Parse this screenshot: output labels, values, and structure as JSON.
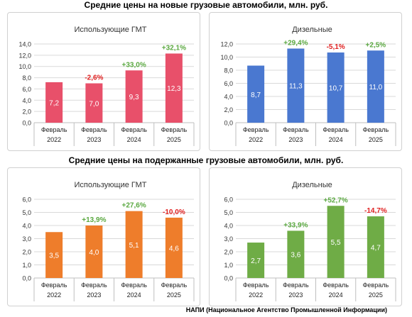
{
  "titles": {
    "new": "Средние цены на новые грузовые автомобили, млн. руб.",
    "used": "Средние цены на подержанные грузовые автомобили, млн. руб."
  },
  "footer": "НАПИ (Национальное Агентство Промышленной Информации)",
  "chart_data": [
    {
      "type": "bar",
      "title": "Использующие ГМТ",
      "categories": [
        "Февраль 2022",
        "Февраль 2023",
        "Февраль 2024",
        "Февраль 2025"
      ],
      "values": [
        7.2,
        7.0,
        9.3,
        12.3
      ],
      "value_labels": [
        "7,2",
        "7,0",
        "9,3",
        "12,3"
      ],
      "changes": [
        "",
        "-2,6%",
        "+33,0%",
        "+32,1%"
      ],
      "ylim": [
        0,
        14
      ],
      "yticks": [
        "0,0",
        "2,0",
        "4,0",
        "6,0",
        "8,0",
        "10,0",
        "12,0",
        "14,0"
      ],
      "color": "#e8506a",
      "grid": true
    },
    {
      "type": "bar",
      "title": "Дизельные",
      "categories": [
        "Февраль 2022",
        "Февраль 2023",
        "Февраль 2024",
        "Февраль 2025"
      ],
      "values": [
        8.7,
        11.3,
        10.7,
        11.0
      ],
      "value_labels": [
        "8,7",
        "11,3",
        "10,7",
        "11,0"
      ],
      "changes": [
        "",
        "+29,4%",
        "-5,1%",
        "+2,5%"
      ],
      "ylim": [
        0,
        12
      ],
      "yticks": [
        "0,0",
        "2,0",
        "4,0",
        "6,0",
        "8,0",
        "10,0",
        "12,0"
      ],
      "color": "#4a78d0",
      "grid": true
    },
    {
      "type": "bar",
      "title": "Использующие ГМТ",
      "categories": [
        "Февраль 2022",
        "Февраль 2023",
        "Февраль 2024",
        "Февраль 2025"
      ],
      "values": [
        3.5,
        4.0,
        5.1,
        4.6
      ],
      "value_labels": [
        "3,5",
        "4,0",
        "5,1",
        "4,6"
      ],
      "changes": [
        "",
        "+13,9%",
        "+27,6%",
        "-10,0%"
      ],
      "ylim": [
        0,
        6
      ],
      "yticks": [
        "0,0",
        "1,0",
        "2,0",
        "3,0",
        "4,0",
        "5,0",
        "6,0"
      ],
      "color": "#ee7d2b",
      "grid": true
    },
    {
      "type": "bar",
      "title": "Дизельные",
      "categories": [
        "Февраль 2022",
        "Февраль 2023",
        "Февраль 2024",
        "Февраль 2025"
      ],
      "values": [
        2.7,
        3.6,
        5.5,
        4.7
      ],
      "value_labels": [
        "2,7",
        "3,6",
        "5,5",
        "4,7"
      ],
      "changes": [
        "",
        "+33,9%",
        "+52,7%",
        "-14,7%"
      ],
      "ylim": [
        0,
        6
      ],
      "yticks": [
        "0,0",
        "1,0",
        "2,0",
        "3,0",
        "4,0",
        "5,0",
        "6,0"
      ],
      "color": "#6fac46",
      "grid": true
    }
  ],
  "colors": {
    "positive": "#5aa840",
    "negative": "#e02020"
  }
}
